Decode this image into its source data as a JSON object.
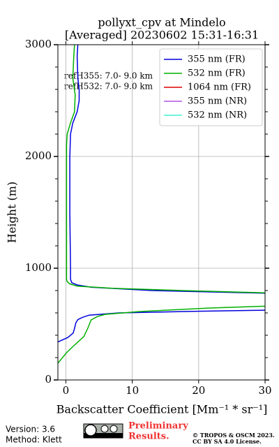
{
  "chart_data": {
    "type": "line",
    "title": [
      "pollyxt_cpv at Mindelo",
      "[Averaged] 20230602 15:31-16:31"
    ],
    "xlabel": "Backscatter Coefficient [Mm⁻¹ * sr⁻¹]",
    "ylabel": "Height (m)",
    "annotations": [
      "refH355:  7.0- 9.0 km",
      "refH532:  7.0- 9.0 km"
    ],
    "xlim": [
      -1.2,
      30
    ],
    "ylim": [
      0,
      3000
    ],
    "xticks": [
      0,
      10,
      20,
      30
    ],
    "yticks": [
      0,
      1000,
      2000,
      3000
    ],
    "yminor_ticks": [
      200,
      400,
      600,
      800,
      1200,
      1400,
      1600,
      1800,
      2200,
      2400,
      2600,
      2800
    ],
    "grid": true,
    "legend": "upper right",
    "series": [
      {
        "name": "355 nm (FR)",
        "color": "#0000dd",
        "x": [
          -1.2,
          0.3,
          1.1,
          1.3,
          1.5,
          1.8,
          2.5,
          3.5,
          8,
          20,
          31,
          null,
          31,
          13,
          3.8,
          1.7,
          0.9,
          0.7,
          0.7,
          0.6,
          0.6,
          0.7,
          1.05,
          1.7,
          2.0,
          2.0,
          1.8,
          1.7,
          1.8
        ],
        "y": [
          340,
          380,
          420,
          460,
          510,
          540,
          560,
          580,
          600,
          615,
          625,
          null,
          775,
          800,
          830,
          850,
          870,
          900,
          1000,
          1500,
          2000,
          2200,
          2300,
          2400,
          2500,
          2600,
          2700,
          2900,
          3000
        ]
      },
      {
        "name": "532 nm (FR)",
        "color": "#00b000",
        "x": [
          -1.2,
          0.1,
          1.2,
          2.7,
          3.3,
          3.8,
          4.8,
          5.9,
          11,
          21.7,
          31,
          null,
          31,
          30,
          17.5,
          7,
          1.7,
          0.6,
          0.2,
          0.1,
          0.1,
          0.1,
          0.1,
          0.2,
          0.7,
          1.3,
          1.4,
          1.05,
          1.2,
          1.3
        ],
        "y": [
          150,
          244,
          306,
          387,
          462,
          537,
          569,
          587,
          612,
          644,
          662,
          null,
          740,
          780,
          800,
          820,
          840,
          860,
          880,
          900,
          1000,
          2000,
          2100,
          2200,
          2300,
          2400,
          2550,
          2700,
          2900,
          3000
        ]
      },
      {
        "name": "1064 nm (FR)",
        "color": "#dd0000",
        "x": [],
        "y": []
      },
      {
        "name": "355 nm (NR)",
        "color": "#b050e0",
        "x": [],
        "y": []
      },
      {
        "name": "532 nm (NR)",
        "color": "#40f0d0",
        "x": [],
        "y": []
      }
    ]
  },
  "footer": {
    "version": "Version: 3.6",
    "method": "Method: Klett",
    "preliminary": [
      "Preliminary",
      "Results."
    ],
    "copyright": [
      "© TROPOS & OSCM 2023.",
      "CC BY SA 4.0 License."
    ]
  }
}
